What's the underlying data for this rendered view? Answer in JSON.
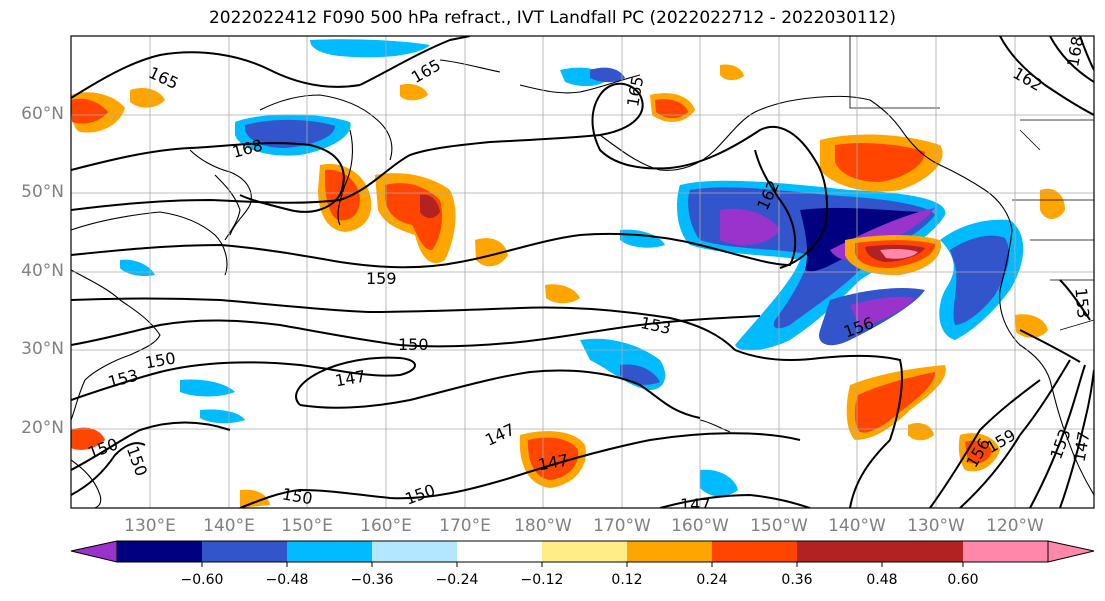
{
  "title": "2022022412 F090 500 hPa refract., IVT Landfall PC (2022022712 - 2022030112)",
  "lat_labels": [
    "60°N",
    "50°N",
    "40°N",
    "30°N",
    "20°N"
  ],
  "lon_labels": [
    "130°E",
    "140°E",
    "150°E",
    "160°E",
    "170°E",
    "180°W",
    "170°W",
    "160°W",
    "150°W",
    "140°W",
    "130°W",
    "120°W"
  ],
  "contour_labels": [
    "165",
    "165",
    "168",
    "165",
    "162",
    "162",
    "168",
    "159",
    "153",
    "150",
    "150",
    "153",
    "147",
    "150",
    "147",
    "147",
    "150",
    "150",
    "147",
    "156",
    "159",
    "153",
    "147",
    "153",
    "156",
    "150"
  ],
  "colorbar": {
    "colors": [
      "#9933cc",
      "#000080",
      "#3355cc",
      "#00bbff",
      "#b3e6ff",
      "#ffffff",
      "#ffee88",
      "#ffa500",
      "#ff4500",
      "#b22222",
      "#ff88aa"
    ],
    "tick_labels": [
      "−0.60",
      "−0.48",
      "−0.36",
      "−0.24",
      "−0.12",
      "0.12",
      "0.24",
      "0.36",
      "0.48",
      "0.60"
    ]
  }
}
